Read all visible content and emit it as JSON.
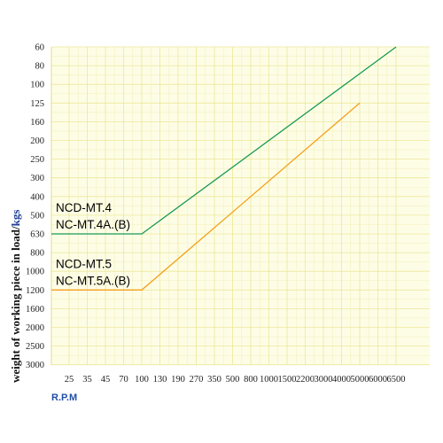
{
  "chart_data": {
    "type": "line",
    "ylabel": "weight of working piece in load/",
    "ylabel_unit": "kgs",
    "xlabel": "R.P.M",
    "x_ticks": [
      "25",
      "35",
      "45",
      "70",
      "100",
      "130",
      "190",
      "270",
      "350",
      "500",
      "800",
      "1000",
      "1500",
      "2200",
      "3000",
      "4000",
      "5000",
      "6000",
      "6500"
    ],
    "y_ticks": [
      "60",
      "80",
      "100",
      "125",
      "160",
      "200",
      "250",
      "300",
      "400",
      "500",
      "630",
      "800",
      "1000",
      "1200",
      "1600",
      "2000",
      "2500",
      "3000"
    ],
    "y_direction": "down",
    "grid": true,
    "series": [
      {
        "name_lines": [
          "NCD-MT.4",
          "NC-MT.4A.(B)"
        ],
        "color": "#1a9a57",
        "points": [
          {
            "x": "25",
            "y": "630"
          },
          {
            "x": "100",
            "y": "630"
          },
          {
            "x": "6500",
            "y": "60"
          }
        ]
      },
      {
        "name_lines": [
          "NCD-MT.5",
          "NC-MT.5A.(B)"
        ],
        "color": "#f5a01e",
        "points": [
          {
            "x": "25",
            "y": "1200"
          },
          {
            "x": "100",
            "y": "1200"
          },
          {
            "x": "5000",
            "y": "125"
          }
        ]
      }
    ]
  }
}
